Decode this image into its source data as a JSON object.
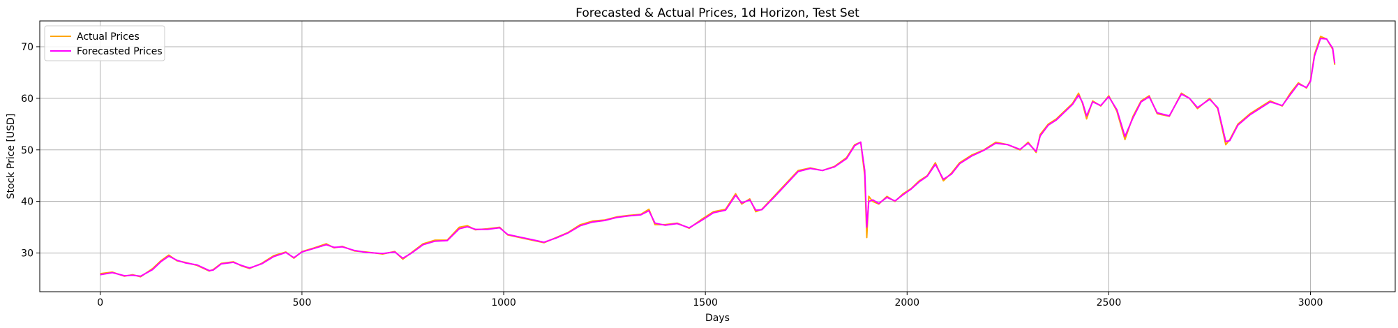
{
  "chart_data": {
    "type": "line",
    "title": "Forecasted & Actual Prices, 1d Horizon, Test Set",
    "xlabel": "Days",
    "ylabel": "Stock Price [USD]",
    "xlim": [
      -150,
      3210
    ],
    "ylim": [
      22.5,
      75
    ],
    "xticks": [
      0,
      500,
      1000,
      1500,
      2000,
      2500,
      3000
    ],
    "yticks": [
      30,
      40,
      50,
      60,
      70
    ],
    "grid": true,
    "legend_position": "top-left",
    "series": [
      {
        "name": "Actual Prices",
        "color": "#FFA500",
        "x": [
          0,
          30,
          60,
          80,
          100,
          130,
          150,
          170,
          190,
          210,
          240,
          270,
          280,
          300,
          330,
          350,
          370,
          400,
          430,
          460,
          480,
          500,
          530,
          560,
          580,
          600,
          630,
          660,
          700,
          730,
          750,
          770,
          800,
          830,
          860,
          890,
          910,
          930,
          960,
          990,
          1010,
          1040,
          1070,
          1100,
          1130,
          1160,
          1190,
          1220,
          1250,
          1280,
          1310,
          1340,
          1360,
          1375,
          1400,
          1430,
          1460,
          1490,
          1520,
          1550,
          1575,
          1590,
          1610,
          1625,
          1640,
          1670,
          1700,
          1730,
          1760,
          1790,
          1820,
          1850,
          1870,
          1885,
          1895,
          1900,
          1905,
          1915,
          1930,
          1950,
          1970,
          1990,
          2010,
          2030,
          2050,
          2070,
          2090,
          2110,
          2130,
          2160,
          2190,
          2220,
          2250,
          2280,
          2300,
          2320,
          2330,
          2350,
          2370,
          2390,
          2410,
          2425,
          2435,
          2445,
          2460,
          2480,
          2500,
          2520,
          2540,
          2560,
          2580,
          2600,
          2620,
          2650,
          2680,
          2700,
          2720,
          2750,
          2770,
          2790,
          2800,
          2820,
          2850,
          2880,
          2900,
          2930,
          2950,
          2970,
          2990,
          3000,
          3010,
          3025,
          3040,
          3055,
          3060
        ],
        "values": [
          26.0,
          26.3,
          25.5,
          25.8,
          25.4,
          27.0,
          28.5,
          29.6,
          28.5,
          28.2,
          27.6,
          26.5,
          26.8,
          28.0,
          28.3,
          27.5,
          27.0,
          28.0,
          29.5,
          30.2,
          29.0,
          30.3,
          31.0,
          31.8,
          31.0,
          31.3,
          30.4,
          30.2,
          29.8,
          30.3,
          28.8,
          30.0,
          31.8,
          32.5,
          32.5,
          35.0,
          35.3,
          34.5,
          34.7,
          35.0,
          33.5,
          33.0,
          32.5,
          32.0,
          33.0,
          34.0,
          35.5,
          36.2,
          36.4,
          37.0,
          37.3,
          37.5,
          38.5,
          35.5,
          35.5,
          35.8,
          34.8,
          36.5,
          38.0,
          38.5,
          41.5,
          39.5,
          40.5,
          38.0,
          38.5,
          41.0,
          43.5,
          46.0,
          46.5,
          46.0,
          46.8,
          48.5,
          51.0,
          51.5,
          45.0,
          33.0,
          41.0,
          40.0,
          39.5,
          41.0,
          40.0,
          41.5,
          42.5,
          44.0,
          45.0,
          47.5,
          44.0,
          45.5,
          47.5,
          49.0,
          50.0,
          51.5,
          51.0,
          50.0,
          51.5,
          49.5,
          53.0,
          55.0,
          56.0,
          57.5,
          59.0,
          61.0,
          59.0,
          56.0,
          59.5,
          58.5,
          60.5,
          57.5,
          52.0,
          56.5,
          59.5,
          60.5,
          57.0,
          56.5,
          61.0,
          60.0,
          58.0,
          60.0,
          58.0,
          51.0,
          52.0,
          55.0,
          57.0,
          58.5,
          59.5,
          58.5,
          61.0,
          63.0,
          62.0,
          63.5,
          68.5,
          72.0,
          71.5,
          69.5,
          66.5
        ]
      },
      {
        "name": "Forecasted Prices",
        "color": "#FF00FF",
        "x": [
          0,
          30,
          60,
          80,
          100,
          130,
          150,
          170,
          190,
          210,
          240,
          270,
          280,
          300,
          330,
          350,
          370,
          400,
          430,
          460,
          480,
          500,
          530,
          560,
          580,
          600,
          630,
          660,
          700,
          730,
          750,
          770,
          800,
          830,
          860,
          890,
          910,
          930,
          960,
          990,
          1010,
          1040,
          1070,
          1100,
          1130,
          1160,
          1190,
          1220,
          1250,
          1280,
          1310,
          1340,
          1360,
          1375,
          1400,
          1430,
          1460,
          1490,
          1520,
          1550,
          1575,
          1590,
          1610,
          1625,
          1640,
          1670,
          1700,
          1730,
          1760,
          1790,
          1820,
          1850,
          1870,
          1885,
          1895,
          1900,
          1905,
          1915,
          1930,
          1950,
          1970,
          1990,
          2010,
          2030,
          2050,
          2070,
          2090,
          2110,
          2130,
          2160,
          2190,
          2220,
          2250,
          2280,
          2300,
          2320,
          2330,
          2350,
          2370,
          2390,
          2410,
          2425,
          2435,
          2445,
          2460,
          2480,
          2500,
          2520,
          2540,
          2560,
          2580,
          2600,
          2620,
          2650,
          2680,
          2700,
          2720,
          2750,
          2770,
          2790,
          2800,
          2820,
          2850,
          2880,
          2900,
          2930,
          2950,
          2970,
          2990,
          3000,
          3010,
          3025,
          3040,
          3055,
          3060
        ],
        "values": [
          25.8,
          26.2,
          25.6,
          25.7,
          25.5,
          26.8,
          28.3,
          29.4,
          28.6,
          28.1,
          27.7,
          26.6,
          26.7,
          27.9,
          28.2,
          27.6,
          27.1,
          27.9,
          29.3,
          30.1,
          29.1,
          30.2,
          30.9,
          31.6,
          31.1,
          31.2,
          30.5,
          30.1,
          29.9,
          30.2,
          29.0,
          29.9,
          31.6,
          32.3,
          32.4,
          34.7,
          35.1,
          34.6,
          34.6,
          34.9,
          33.6,
          33.1,
          32.6,
          32.1,
          32.9,
          33.9,
          35.3,
          36.0,
          36.3,
          36.9,
          37.2,
          37.4,
          38.2,
          35.8,
          35.4,
          35.7,
          34.9,
          36.3,
          37.8,
          38.3,
          41.2,
          39.7,
          40.3,
          38.3,
          38.4,
          40.8,
          43.3,
          45.8,
          46.4,
          46.0,
          46.7,
          48.3,
          50.8,
          51.5,
          46.0,
          35.0,
          40.0,
          40.3,
          39.6,
          40.8,
          40.1,
          41.3,
          42.4,
          43.8,
          44.9,
          47.2,
          44.3,
          45.3,
          47.3,
          48.8,
          49.9,
          51.3,
          51.0,
          50.1,
          51.3,
          49.7,
          52.7,
          54.8,
          55.8,
          57.3,
          58.8,
          60.6,
          59.2,
          56.6,
          59.3,
          58.6,
          60.3,
          57.8,
          52.6,
          56.2,
          59.3,
          60.3,
          57.2,
          56.6,
          60.8,
          60.0,
          58.2,
          59.8,
          58.2,
          51.6,
          51.8,
          54.8,
          56.8,
          58.3,
          59.3,
          58.6,
          60.7,
          62.8,
          62.1,
          63.3,
          68.2,
          71.6,
          71.5,
          69.7,
          66.8
        ]
      }
    ]
  }
}
